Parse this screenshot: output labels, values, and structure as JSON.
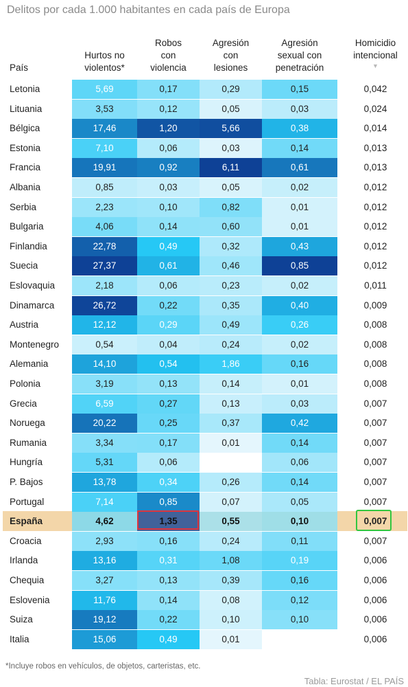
{
  "title": "Delitos por cada 1.000 habitantes en cada país de Europa",
  "footnote": "*Incluye robos en vehículos, de objetos, carteristas, etc.",
  "source": "Tabla: Eurostat / EL PAÍS",
  "sort_indicator": "▼",
  "colors": {
    "spain_band": "#f3d6a9",
    "highlight_red": "#e0343c",
    "highlight_green": "#31c63f"
  },
  "chart_data": {
    "type": "table",
    "title": "Delitos por cada 1.000 habitantes en cada país de Europa",
    "columns": [
      "País",
      "Hurtos no violentos*",
      "Robos con violencia",
      "Agresión con lesiones",
      "Agresión sexual con penetración",
      "Homicidio intencional"
    ],
    "column_lines": [
      [
        "País"
      ],
      [
        "Hurtos no",
        "violentos*"
      ],
      [
        "Robos",
        "con",
        "violencia"
      ],
      [
        "Agresión",
        "con",
        "lesiones"
      ],
      [
        "Agresión",
        "sexual con",
        "penetración"
      ],
      [
        "Homicidio",
        "intencional"
      ]
    ],
    "sorted_by": "Homicidio intencional",
    "highlight_row": "España",
    "rows": [
      {
        "country": "Letonia",
        "values": [
          "5,69",
          "0,17",
          "0,29",
          "0,15",
          "0,042"
        ]
      },
      {
        "country": "Lituania",
        "values": [
          "3,53",
          "0,12",
          "0,05",
          "0,03",
          "0,024"
        ]
      },
      {
        "country": "Bélgica",
        "values": [
          "17,46",
          "1,20",
          "5,66",
          "0,38",
          "0,014"
        ]
      },
      {
        "country": "Estonia",
        "values": [
          "7,10",
          "0,06",
          "0,03",
          "0,14",
          "0,013"
        ]
      },
      {
        "country": "Francia",
        "values": [
          "19,91",
          "0,92",
          "6,11",
          "0,61",
          "0,013"
        ]
      },
      {
        "country": "Albania",
        "values": [
          "0,85",
          "0,03",
          "0,05",
          "0,02",
          "0,012"
        ]
      },
      {
        "country": "Serbia",
        "values": [
          "2,23",
          "0,10",
          "0,82",
          "0,01",
          "0,012"
        ]
      },
      {
        "country": "Bulgaria",
        "values": [
          "4,06",
          "0,14",
          "0,60",
          "0,01",
          "0,012"
        ]
      },
      {
        "country": "Finlandia",
        "values": [
          "22,78",
          "0,49",
          "0,32",
          "0,43",
          "0,012"
        ]
      },
      {
        "country": "Suecia",
        "values": [
          "27,37",
          "0,61",
          "0,46",
          "0,85",
          "0,012"
        ]
      },
      {
        "country": "Eslovaquia",
        "values": [
          "2,18",
          "0,06",
          "0,23",
          "0,02",
          "0,011"
        ]
      },
      {
        "country": "Dinamarca",
        "values": [
          "26,72",
          "0,22",
          "0,35",
          "0,40",
          "0,009"
        ]
      },
      {
        "country": "Austria",
        "values": [
          "12,12",
          "0,29",
          "0,49",
          "0,26",
          "0,008"
        ]
      },
      {
        "country": "Montenegro",
        "values": [
          "0,54",
          "0,04",
          "0,24",
          "0,02",
          "0,008"
        ]
      },
      {
        "country": "Alemania",
        "values": [
          "14,10",
          "0,54",
          "1,86",
          "0,16",
          "0,008"
        ]
      },
      {
        "country": "Polonia",
        "values": [
          "3,19",
          "0,13",
          "0,14",
          "0,01",
          "0,008"
        ]
      },
      {
        "country": "Grecia",
        "values": [
          "6,59",
          "0,27",
          "0,13",
          "0,03",
          "0,007"
        ]
      },
      {
        "country": "Noruega",
        "values": [
          "20,22",
          "0,25",
          "0,37",
          "0,42",
          "0,007"
        ]
      },
      {
        "country": "Rumania",
        "values": [
          "3,34",
          "0,17",
          "0,01",
          "0,14",
          "0,007"
        ]
      },
      {
        "country": "Hungría",
        "values": [
          "5,31",
          "0,06",
          "",
          "0,06",
          "0,007"
        ]
      },
      {
        "country": "P. Bajos",
        "values": [
          "13,78",
          "0,34",
          "0,26",
          "0,14",
          "0,007"
        ]
      },
      {
        "country": "Portugal",
        "values": [
          "7,14",
          "0,85",
          "0,07",
          "0,05",
          "0,007"
        ]
      },
      {
        "country": "España",
        "values": [
          "4,62",
          "1,35",
          "0,55",
          "0,10",
          "0,007"
        ]
      },
      {
        "country": "Croacia",
        "values": [
          "2,93",
          "0,16",
          "0,24",
          "0,11",
          "0,007"
        ]
      },
      {
        "country": "Irlanda",
        "values": [
          "13,16",
          "0,31",
          "1,08",
          "0,19",
          "0,006"
        ]
      },
      {
        "country": "Chequia",
        "values": [
          "3,27",
          "0,13",
          "0,39",
          "0,16",
          "0,006"
        ]
      },
      {
        "country": "Eslovenia",
        "values": [
          "11,76",
          "0,14",
          "0,08",
          "0,12",
          "0,006"
        ]
      },
      {
        "country": "Suiza",
        "values": [
          "19,12",
          "0,22",
          "0,10",
          "0,10",
          "0,006"
        ]
      },
      {
        "country": "Italia",
        "values": [
          "15,06",
          "0,49",
          "0,01",
          "",
          "0,006"
        ]
      }
    ]
  }
}
